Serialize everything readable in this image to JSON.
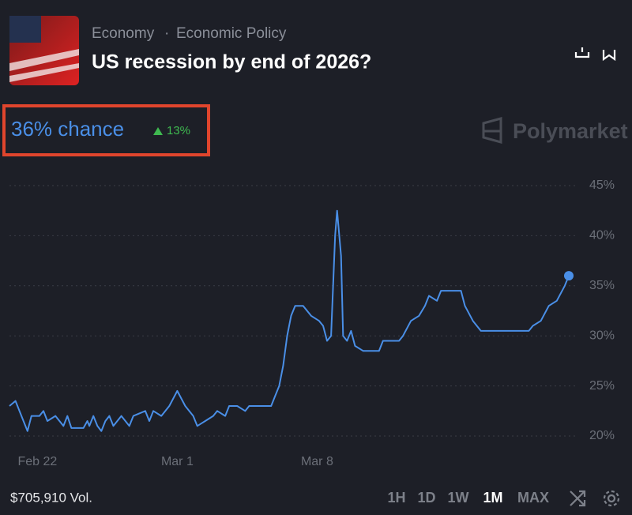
{
  "header": {
    "category": "Economy",
    "subcategory": "Economic Policy",
    "title": "US recession by end of 2026?"
  },
  "chance": {
    "label": "36% chance",
    "change": "13%"
  },
  "brand": "Polymarket",
  "chart_data": {
    "type": "line",
    "x": [
      -1.4,
      -1.1,
      -0.7,
      -0.5,
      -0.3,
      0.1,
      0.3,
      0.5,
      0.9,
      1.3,
      1.5,
      1.7,
      2.3,
      2.5,
      2.6,
      2.8,
      3.0,
      3.2,
      3.4,
      3.6,
      3.8,
      4.0,
      4.2,
      4.6,
      4.8,
      5.4,
      5.6,
      5.8,
      6.2,
      6.6,
      7.0,
      7.4,
      7.8,
      8.0,
      8.4,
      8.8,
      9.0,
      9.4,
      9.6,
      10.0,
      10.4,
      10.6,
      11.7,
      11.9,
      12.1,
      12.3,
      12.5,
      12.7,
      12.9,
      13.3,
      13.7,
      14.1,
      14.3,
      14.5,
      14.7,
      14.9,
      15.0,
      15.2,
      15.3,
      15.5,
      15.7,
      15.9,
      16.3,
      17.1,
      17.3,
      18.1,
      18.3,
      18.7,
      19.1,
      19.4,
      19.6,
      20.0,
      20.2,
      21.2,
      21.4,
      21.8,
      22.2,
      24.6,
      24.8,
      25.2,
      25.6,
      26.0,
      26.4,
      26.6
    ],
    "series": [
      {
        "name": "Yes",
        "color": "#4a8fe7",
        "values": [
          23,
          23.5,
          21.5,
          20.5,
          22,
          22,
          22.5,
          21.5,
          22,
          21,
          22,
          20.8,
          20.8,
          21.5,
          21,
          22,
          21,
          20.5,
          21.5,
          22,
          21,
          21.5,
          22,
          21,
          22,
          22.5,
          21.5,
          22.5,
          22,
          23,
          24.5,
          23,
          22,
          21,
          21.5,
          22,
          22.5,
          22,
          23,
          23,
          22.5,
          23,
          23,
          24,
          25,
          27,
          30,
          32,
          33,
          33,
          32,
          31.5,
          31,
          29.5,
          30,
          40,
          42.5,
          38,
          30,
          29.5,
          30.5,
          29,
          28.5,
          28.5,
          29.5,
          29.5,
          30,
          31.5,
          32,
          33,
          34,
          33.5,
          34.5,
          34.5,
          33,
          31.5,
          30.5,
          30.5,
          31,
          31.5,
          33,
          33.5,
          35,
          36
        ]
      }
    ],
    "xlim": [
      -1.4,
      26.6
    ],
    "xticks": [
      {
        "value": 0,
        "label": "Feb 22"
      },
      {
        "value": 7,
        "label": "Mar 1"
      },
      {
        "value": 14,
        "label": "Mar 8"
      }
    ],
    "ylim": [
      20,
      45
    ],
    "yticks": [
      {
        "value": 20,
        "label": "20%"
      },
      {
        "value": 25,
        "label": "25%"
      },
      {
        "value": 30,
        "label": "30%"
      },
      {
        "value": 35,
        "label": "35%"
      },
      {
        "value": 40,
        "label": "40%"
      },
      {
        "value": 45,
        "label": "45%"
      }
    ],
    "grid": true
  },
  "footer": {
    "volume": "$705,910 Vol.",
    "ranges": [
      "1H",
      "1D",
      "1W",
      "1M",
      "MAX"
    ],
    "active_range": "1M"
  }
}
